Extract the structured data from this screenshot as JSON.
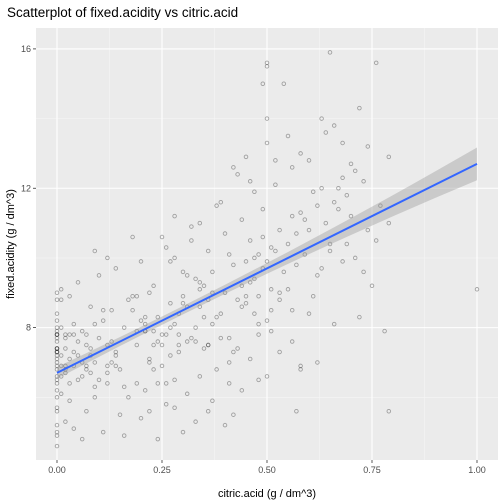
{
  "chart_data": {
    "type": "scatter",
    "title": "Scatterplot of fixed.acidity vs citric.acid",
    "xlabel": "citric.acid (g / dm^3)",
    "ylabel": "fixed.acidity (g / dm^3)",
    "xlim": [
      -0.05,
      1.05
    ],
    "ylim": [
      4.2,
      16.6
    ],
    "x_ticks": [
      0.0,
      0.25,
      0.5,
      0.75,
      1.0
    ],
    "x_tick_labels": [
      "0.00",
      "0.25",
      "0.50",
      "0.75",
      "1.00"
    ],
    "y_ticks": [
      8,
      12,
      16
    ],
    "y_tick_labels": [
      "8",
      "12",
      "16"
    ],
    "grid": true,
    "legend": "none",
    "point_color": "#000000",
    "point_alpha": 0.2,
    "panel_background": "#ebebeb",
    "series": [
      {
        "values": [
          [
            0.0,
            7.4
          ],
          [
            0.0,
            7.8
          ],
          [
            0.04,
            7.8
          ],
          [
            0.56,
            11.2
          ],
          [
            0.0,
            7.4
          ],
          [
            0.0,
            7.4
          ],
          [
            0.06,
            7.9
          ],
          [
            0.0,
            7.3
          ],
          [
            0.02,
            7.8
          ],
          [
            0.36,
            7.5
          ],
          [
            0.08,
            6.7
          ],
          [
            0.36,
            7.5
          ],
          [
            0.0,
            5.6
          ],
          [
            0.29,
            7.8
          ],
          [
            0.18,
            8.9
          ],
          [
            0.19,
            8.9
          ],
          [
            0.56,
            8.5
          ],
          [
            0.28,
            8.1
          ],
          [
            0.08,
            7.4
          ],
          [
            0.51,
            7.9
          ],
          [
            0.48,
            8.9
          ],
          [
            0.31,
            7.6
          ],
          [
            0.21,
            7.9
          ],
          [
            0.11,
            8.5
          ],
          [
            0.14,
            6.9
          ],
          [
            0.16,
            6.3
          ],
          [
            0.24,
            7.6
          ],
          [
            0.21,
            7.9
          ],
          [
            0.0,
            7.1
          ],
          [
            0.07,
            7.8
          ],
          [
            0.12,
            6.7
          ],
          [
            0.25,
            6.9
          ],
          [
            0.38,
            8.3
          ],
          [
            0.0,
            6.9
          ],
          [
            0.0,
            5.2
          ],
          [
            0.0,
            7.8
          ],
          [
            0.03,
            7.8
          ],
          [
            0.21,
            8.1
          ],
          [
            0.0,
            5.7
          ],
          [
            0.0,
            7.3
          ],
          [
            0.0,
            7.3
          ],
          [
            0.36,
            8.8
          ],
          [
            0.25,
            7.5
          ],
          [
            0.48,
            8.1
          ],
          [
            0.23,
            6.8
          ],
          [
            0.0,
            4.6
          ],
          [
            0.0,
            7.7
          ],
          [
            0.3,
            8.7
          ],
          [
            0.41,
            6.4
          ],
          [
            0.22,
            5.6
          ],
          [
            0.0,
            8.8
          ],
          [
            0.5,
            6.6
          ],
          [
            0.01,
            6.6
          ],
          [
            0.34,
            8.6
          ],
          [
            0.13,
            7.6
          ],
          [
            0.32,
            7.7
          ],
          [
            0.09,
            10.2
          ],
          [
            0.12,
            7.5
          ],
          [
            0.26,
            7.8
          ],
          [
            0.42,
            7.3
          ],
          [
            0.01,
            8.8
          ],
          [
            0.02,
            7.7
          ],
          [
            0.29,
            7.5
          ],
          [
            0.09,
            8.1
          ],
          [
            0.58,
            6.8
          ],
          [
            0.14,
            7.2
          ],
          [
            0.28,
            5.7
          ],
          [
            0.0,
            7.8
          ],
          [
            0.22,
            7.1
          ],
          [
            0.26,
            6.4
          ],
          [
            0.31,
            9.5
          ],
          [
            0.34,
            9.3
          ],
          [
            0.65,
            10.4
          ],
          [
            0.2,
            8.2
          ],
          [
            0.18,
            8.5
          ],
          [
            0.07,
            6.9
          ],
          [
            0.0,
            8.0
          ],
          [
            0.45,
            8.7
          ],
          [
            0.37,
            9.0
          ],
          [
            0.41,
            7.7
          ],
          [
            0.05,
            7.2
          ],
          [
            0.27,
            8.0
          ],
          [
            0.02,
            6.9
          ],
          [
            0.44,
            9.2
          ],
          [
            0.34,
            9.1
          ],
          [
            0.19,
            7.9
          ],
          [
            0.12,
            6.4
          ],
          [
            0.09,
            7.0
          ],
          [
            0.53,
            8.8
          ],
          [
            0.3,
            8.9
          ],
          [
            0.23,
            7.5
          ],
          [
            0.24,
            8.3
          ],
          [
            0.01,
            6.1
          ],
          [
            0.1,
            6.5
          ],
          [
            0.66,
            11.6
          ],
          [
            0.46,
            10.5
          ],
          [
            0.58,
            11.3
          ],
          [
            0.49,
            9.7
          ],
          [
            0.52,
            10.2
          ],
          [
            0.44,
            8.6
          ],
          [
            0.61,
            11.9
          ],
          [
            0.4,
            9.0
          ],
          [
            0.53,
            10.8
          ],
          [
            0.47,
            10.0
          ],
          [
            0.55,
            10.4
          ],
          [
            0.63,
            12.0
          ],
          [
            0.59,
            11.1
          ],
          [
            0.5,
            9.9
          ],
          [
            0.68,
            12.3
          ],
          [
            0.57,
            10.7
          ],
          [
            0.62,
            11.5
          ],
          [
            0.45,
            8.9
          ],
          [
            0.71,
            12.5
          ],
          [
            0.54,
            9.6
          ],
          [
            0.48,
            10.1
          ],
          [
            0.6,
            12.8
          ],
          [
            0.69,
            11.8
          ],
          [
            0.51,
            10.3
          ],
          [
            0.47,
            9.4
          ],
          [
            0.42,
            9.8
          ],
          [
            0.39,
            8.4
          ],
          [
            0.35,
            9.2
          ],
          [
            0.33,
            8.0
          ],
          [
            0.3,
            9.6
          ],
          [
            0.27,
            9.9
          ],
          [
            0.25,
            10.6
          ],
          [
            0.22,
            9.0
          ],
          [
            0.4,
            10.7
          ],
          [
            0.44,
            11.1
          ],
          [
            0.36,
            10.2
          ],
          [
            0.32,
            10.9
          ],
          [
            0.28,
            11.2
          ],
          [
            0.49,
            11.4
          ],
          [
            0.52,
            12.1
          ],
          [
            0.56,
            12.6
          ],
          [
            0.58,
            13.0
          ],
          [
            0.5,
            13.3
          ],
          [
            0.46,
            12.2
          ],
          [
            0.43,
            12.4
          ],
          [
            0.39,
            11.6
          ],
          [
            0.64,
            13.6
          ],
          [
            0.74,
            13.2
          ],
          [
            0.72,
            14.3
          ],
          [
            0.66,
            13.8
          ],
          [
            0.63,
            14.0
          ],
          [
            0.65,
            15.9
          ],
          [
            0.76,
            15.6
          ],
          [
            0.5,
            15.5
          ],
          [
            0.5,
            15.6
          ],
          [
            0.49,
            15.0
          ],
          [
            0.54,
            15.0
          ],
          [
            0.68,
            13.3
          ],
          [
            0.7,
            12.7
          ],
          [
            0.73,
            12.2
          ],
          [
            0.77,
            11.5
          ],
          [
            0.79,
            12.9
          ],
          [
            0.76,
            10.5
          ],
          [
            0.78,
            7.9
          ],
          [
            0.75,
            9.2
          ],
          [
            0.72,
            8.3
          ],
          [
            0.79,
            5.6
          ],
          [
            1.0,
            9.1
          ],
          [
            0.79,
            11.0
          ],
          [
            0.74,
            10.8
          ],
          [
            0.68,
            9.9
          ],
          [
            0.66,
            8.1
          ],
          [
            0.62,
            7.0
          ],
          [
            0.6,
            8.4
          ],
          [
            0.58,
            6.9
          ],
          [
            0.56,
            7.6
          ],
          [
            0.55,
            9.1
          ],
          [
            0.53,
            7.3
          ],
          [
            0.5,
            8.2
          ],
          [
            0.48,
            6.5
          ],
          [
            0.46,
            7.1
          ],
          [
            0.44,
            6.2
          ],
          [
            0.42,
            5.5
          ],
          [
            0.38,
            6.8
          ],
          [
            0.37,
            5.9
          ],
          [
            0.35,
            7.4
          ],
          [
            0.34,
            6.6
          ],
          [
            0.33,
            5.3
          ],
          [
            0.31,
            6.1
          ],
          [
            0.29,
            8.4
          ],
          [
            0.27,
            7.2
          ],
          [
            0.26,
            5.8
          ],
          [
            0.24,
            6.4
          ],
          [
            0.23,
            7.9
          ],
          [
            0.21,
            6.2
          ],
          [
            0.2,
            5.4
          ],
          [
            0.19,
            7.5
          ],
          [
            0.17,
            6.0
          ],
          [
            0.16,
            8.0
          ],
          [
            0.15,
            5.5
          ],
          [
            0.14,
            7.3
          ],
          [
            0.13,
            8.5
          ],
          [
            0.12,
            6.9
          ],
          [
            0.11,
            5.0
          ],
          [
            0.1,
            7.7
          ],
          [
            0.09,
            6.3
          ],
          [
            0.08,
            8.6
          ],
          [
            0.07,
            5.6
          ],
          [
            0.06,
            7.0
          ],
          [
            0.05,
            6.5
          ],
          [
            0.04,
            8.1
          ],
          [
            0.03,
            5.9
          ],
          [
            0.02,
            6.8
          ],
          [
            0.01,
            7.2
          ],
          [
            0.0,
            6.0
          ],
          [
            0.0,
            6.5
          ],
          [
            0.0,
            9.0
          ],
          [
            0.0,
            8.4
          ],
          [
            0.0,
            6.2
          ],
          [
            0.0,
            5.0
          ],
          [
            0.0,
            4.9
          ],
          [
            0.01,
            9.1
          ],
          [
            0.02,
            5.3
          ],
          [
            0.03,
            8.9
          ],
          [
            0.04,
            5.1
          ],
          [
            0.05,
            9.3
          ],
          [
            0.06,
            4.8
          ],
          [
            0.1,
            9.5
          ],
          [
            0.12,
            10.0
          ],
          [
            0.14,
            9.7
          ],
          [
            0.16,
            4.9
          ],
          [
            0.18,
            10.6
          ],
          [
            0.2,
            9.9
          ],
          [
            0.24,
            4.8
          ],
          [
            0.26,
            10.3
          ],
          [
            0.28,
            10.0
          ],
          [
            0.3,
            5.0
          ],
          [
            0.32,
            10.5
          ],
          [
            0.34,
            11.0
          ],
          [
            0.36,
            5.6
          ],
          [
            0.38,
            11.5
          ],
          [
            0.4,
            5.2
          ],
          [
            0.42,
            12.6
          ],
          [
            0.45,
            12.9
          ],
          [
            0.47,
            11.9
          ],
          [
            0.5,
            14.0
          ],
          [
            0.52,
            12.8
          ],
          [
            0.55,
            13.5
          ],
          [
            0.57,
            5.6
          ],
          [
            0.6,
            10.8
          ],
          [
            0.62,
            9.5
          ],
          [
            0.64,
            11.0
          ],
          [
            0.67,
            12.0
          ],
          [
            0.7,
            11.2
          ],
          [
            0.71,
            10.0
          ],
          [
            0.73,
            9.6
          ],
          [
            0.09,
            6.0
          ],
          [
            0.15,
            6.8
          ],
          [
            0.22,
            7.0
          ],
          [
            0.28,
            6.5
          ],
          [
            0.33,
            7.6
          ],
          [
            0.37,
            8.1
          ],
          [
            0.41,
            7.0
          ],
          [
            0.43,
            8.8
          ],
          [
            0.46,
            9.3
          ],
          [
            0.48,
            7.8
          ],
          [
            0.51,
            8.5
          ],
          [
            0.53,
            9.0
          ],
          [
            0.57,
            9.8
          ],
          [
            0.59,
            10.1
          ],
          [
            0.61,
            8.9
          ],
          [
            0.63,
            9.7
          ],
          [
            0.65,
            10.2
          ],
          [
            0.67,
            11.4
          ],
          [
            0.69,
            10.4
          ],
          [
            0.07,
            7.5
          ],
          [
            0.11,
            8.2
          ],
          [
            0.13,
            7.0
          ],
          [
            0.17,
            8.8
          ],
          [
            0.19,
            6.4
          ],
          [
            0.21,
            8.3
          ],
          [
            0.23,
            9.2
          ],
          [
            0.25,
            7.8
          ],
          [
            0.27,
            8.7
          ],
          [
            0.29,
            7.3
          ],
          [
            0.31,
            8.6
          ],
          [
            0.33,
            9.4
          ],
          [
            0.35,
            8.3
          ],
          [
            0.37,
            9.6
          ],
          [
            0.39,
            7.7
          ],
          [
            0.41,
            10.1
          ],
          [
            0.43,
            7.4
          ],
          [
            0.45,
            9.9
          ],
          [
            0.47,
            8.4
          ],
          [
            0.49,
            10.6
          ],
          [
            0.51,
            9.1
          ],
          [
            0.0,
            7.0
          ],
          [
            0.0,
            7.6
          ],
          [
            0.0,
            6.8
          ],
          [
            0.0,
            7.2
          ],
          [
            0.0,
            6.4
          ],
          [
            0.0,
            8.2
          ],
          [
            0.0,
            7.9
          ],
          [
            0.0,
            6.6
          ],
          [
            0.01,
            6.9
          ],
          [
            0.02,
            7.4
          ],
          [
            0.01,
            8.0
          ],
          [
            0.02,
            6.7
          ],
          [
            0.03,
            7.1
          ],
          [
            0.03,
            6.4
          ],
          [
            0.04,
            7.3
          ],
          [
            0.04,
            6.9
          ],
          [
            0.05,
            7.6
          ],
          [
            0.06,
            6.6
          ],
          [
            0.07,
            6.8
          ],
          [
            0.08,
            7.2
          ]
        ]
      }
    ],
    "trend_line": {
      "method": "lm",
      "x": [
        0.0,
        1.0
      ],
      "y": [
        6.7,
        12.7
      ],
      "color": "#3366ff"
    }
  }
}
